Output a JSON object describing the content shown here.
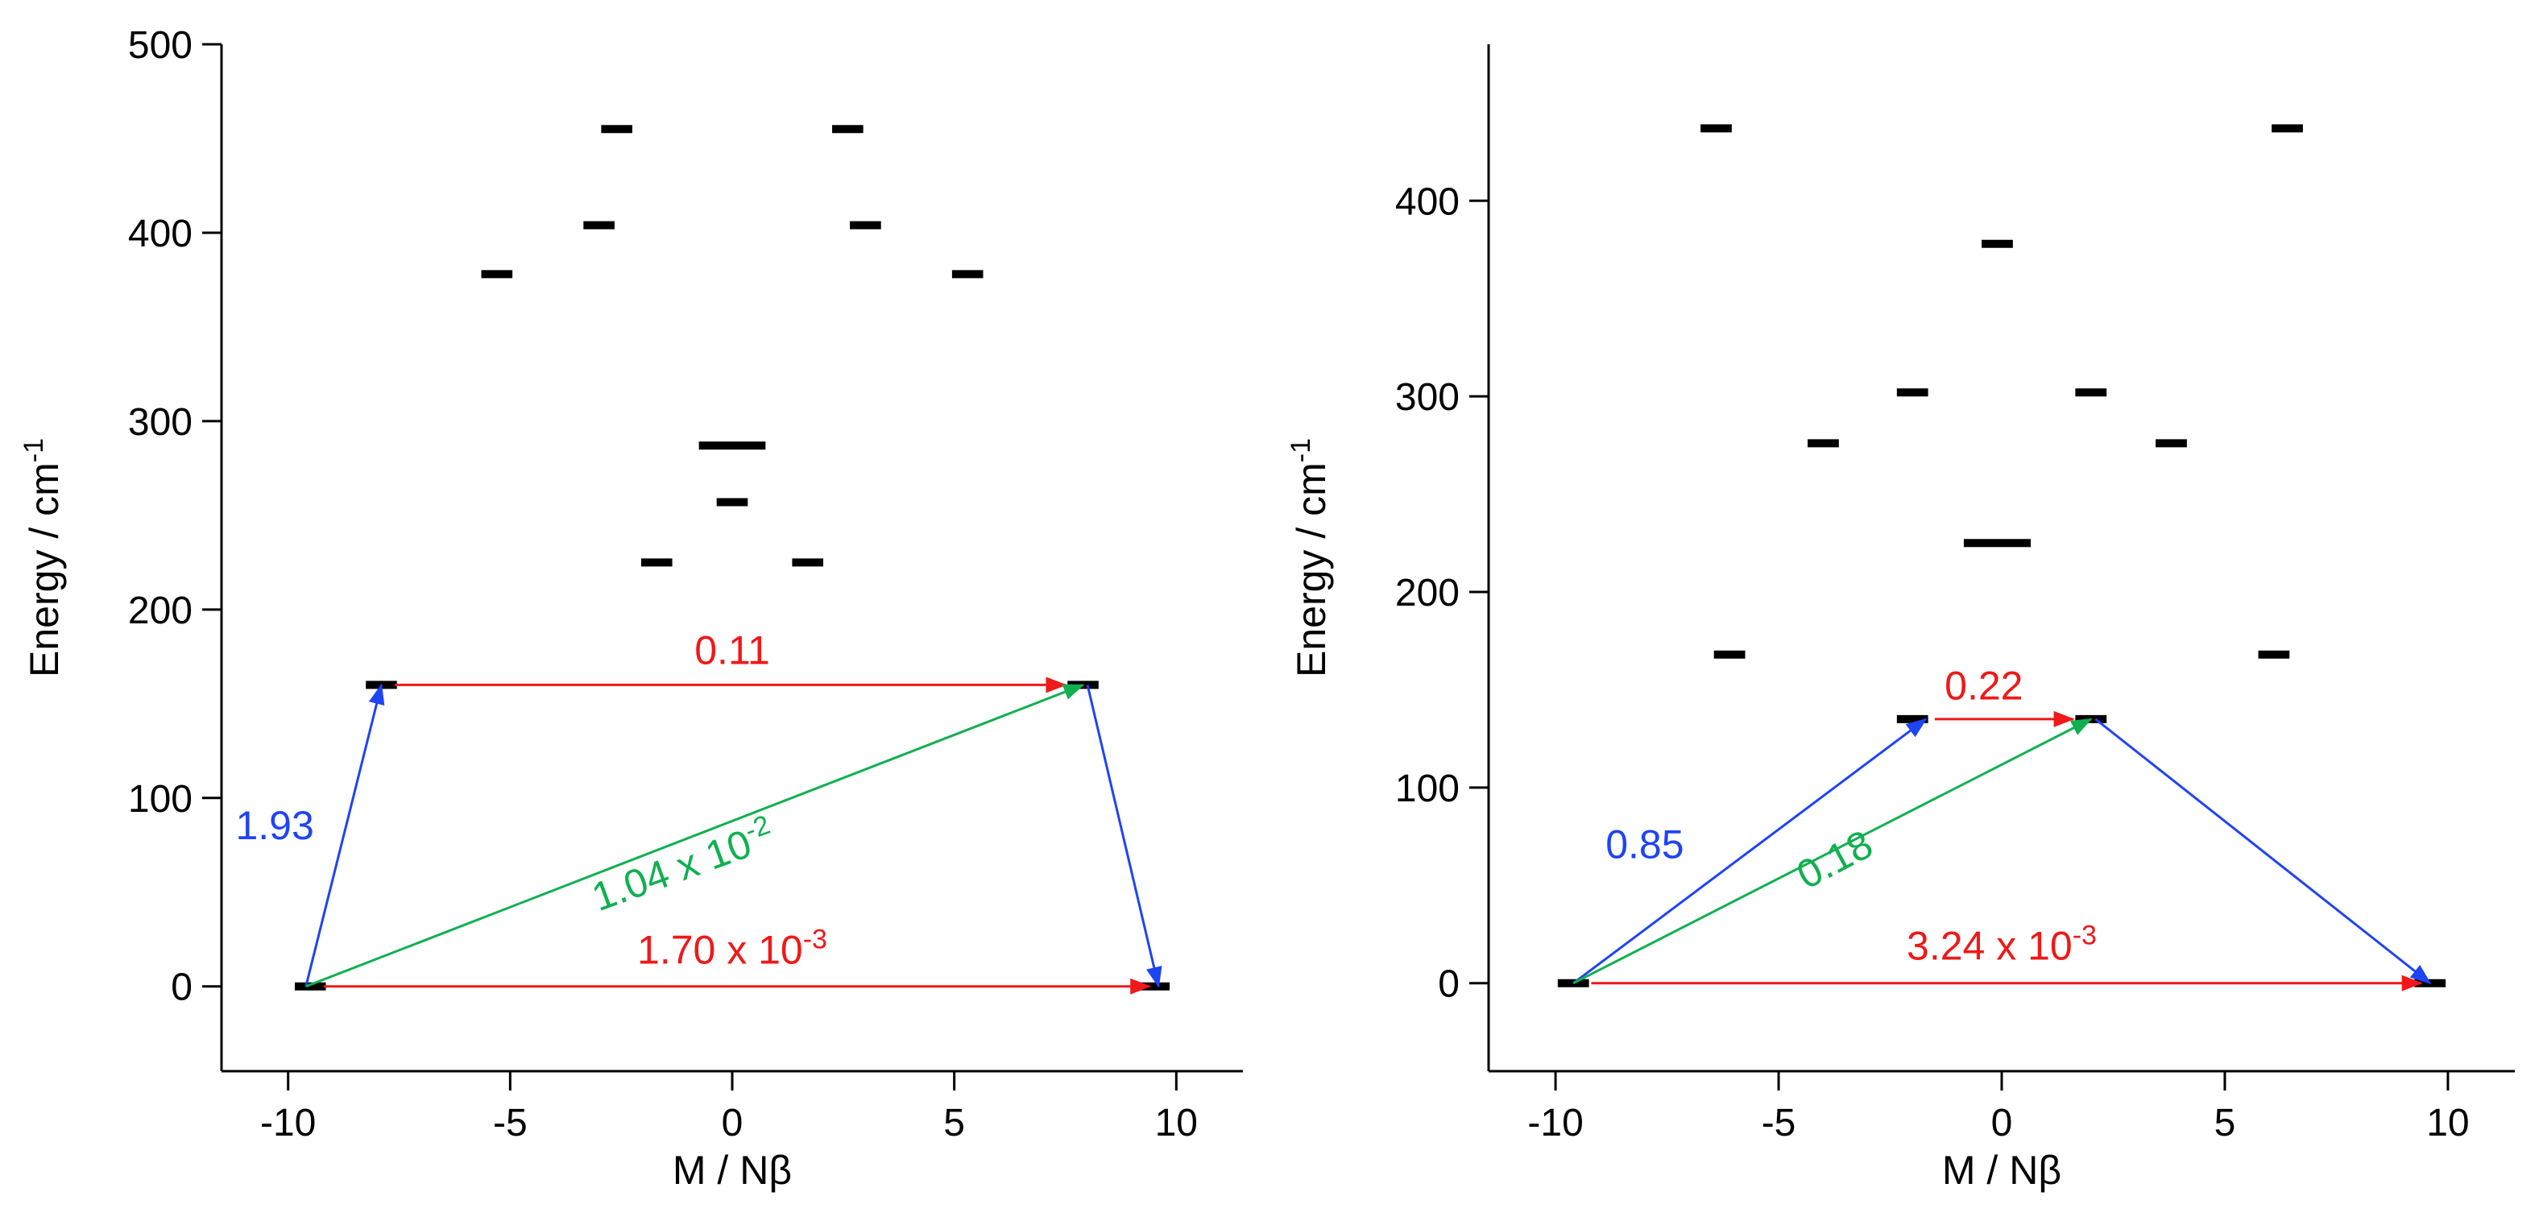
{
  "chart_data": [
    {
      "type": "scatter",
      "title": "",
      "xlabel": "M / Nβ",
      "ylabel": "Energy / cm",
      "ylabel_superscript": "-1",
      "xlim": [
        -11.5,
        11.5
      ],
      "ylim": [
        -45,
        500
      ],
      "xticks": [
        -10,
        -5,
        0,
        5,
        10
      ],
      "xtick_labels": [
        "-10",
        "-5",
        "0",
        "5",
        "10"
      ],
      "yticks": [
        0,
        100,
        200,
        300,
        400,
        500
      ],
      "ytick_labels": [
        "0",
        "100",
        "200",
        "300",
        "400",
        "500"
      ],
      "grid": false,
      "levels": [
        {
          "m": -9.5,
          "energy": 0,
          "width": 0.7
        },
        {
          "m": 9.5,
          "energy": 0,
          "width": 0.7
        },
        {
          "m": -7.9,
          "energy": 160,
          "width": 0.7
        },
        {
          "m": 7.9,
          "energy": 160,
          "width": 0.7
        },
        {
          "m": -1.7,
          "energy": 225,
          "width": 0.7
        },
        {
          "m": 1.7,
          "energy": 225,
          "width": 0.7
        },
        {
          "m": 0.0,
          "energy": 257,
          "width": 0.7
        },
        {
          "m": 0.0,
          "energy": 287,
          "width": 1.5
        },
        {
          "m": -5.3,
          "energy": 378,
          "width": 0.7
        },
        {
          "m": 5.3,
          "energy": 378,
          "width": 0.7
        },
        {
          "m": -3.0,
          "energy": 404,
          "width": 0.7
        },
        {
          "m": 3.0,
          "energy": 404,
          "width": 0.7
        },
        {
          "m": -2.6,
          "energy": 455,
          "width": 0.7
        },
        {
          "m": 2.6,
          "energy": 455,
          "width": 0.7
        }
      ],
      "transitions": [
        {
          "from": [
            -9.6,
            0
          ],
          "to": [
            -7.9,
            160
          ],
          "color": "#1f44f5",
          "label": "1.93",
          "label_sup": "",
          "label_at": [
            -10.3,
            78
          ],
          "label_rotate": 0
        },
        {
          "from": [
            -7.6,
            160
          ],
          "to": [
            7.5,
            160
          ],
          "color": "#f01818",
          "label": "0.11",
          "label_sup": "",
          "label_at": [
            0.0,
            171
          ],
          "label_rotate": 0
        },
        {
          "from": [
            -9.6,
            0
          ],
          "to": [
            7.9,
            160
          ],
          "color": "#10b050",
          "label": "1.04 x 10",
          "label_sup": "-2",
          "label_at": [
            -1.0,
            57
          ],
          "label_rotate": -20
        },
        {
          "from": [
            8.0,
            160
          ],
          "to": [
            9.6,
            0
          ],
          "color": "#1f44f5",
          "label": "",
          "label_sup": "",
          "label_at": [
            0,
            0
          ],
          "label_rotate": 0
        },
        {
          "from": [
            -9.2,
            0
          ],
          "to": [
            9.4,
            0
          ],
          "color": "#f01818",
          "label": "1.70 x 10",
          "label_sup": "-3",
          "label_at": [
            0.0,
            12
          ],
          "label_rotate": 0
        }
      ]
    },
    {
      "type": "scatter",
      "title": "",
      "xlabel": "M / Nβ",
      "ylabel": "Energy / cm",
      "ylabel_superscript": "-1",
      "xlim": [
        -11.5,
        11.5
      ],
      "ylim": [
        -45,
        480
      ],
      "xticks": [
        -10,
        -5,
        0,
        5,
        10
      ],
      "xtick_labels": [
        "-10",
        "-5",
        "0",
        "5",
        "10"
      ],
      "yticks": [
        0,
        100,
        200,
        300,
        400
      ],
      "ytick_labels": [
        "0",
        "100",
        "200",
        "300",
        "400"
      ],
      "grid": false,
      "levels": [
        {
          "m": -9.6,
          "energy": 0,
          "width": 0.7
        },
        {
          "m": 9.6,
          "energy": 0,
          "width": 0.7
        },
        {
          "m": -2.0,
          "energy": 135,
          "width": 0.7
        },
        {
          "m": 2.0,
          "energy": 135,
          "width": 0.7
        },
        {
          "m": -6.1,
          "energy": 168,
          "width": 0.7
        },
        {
          "m": 6.1,
          "energy": 168,
          "width": 0.7
        },
        {
          "m": -0.1,
          "energy": 225,
          "width": 1.5
        },
        {
          "m": -4.0,
          "energy": 276,
          "width": 0.7
        },
        {
          "m": 3.8,
          "energy": 276,
          "width": 0.7
        },
        {
          "m": -2.0,
          "energy": 302,
          "width": 0.7
        },
        {
          "m": 2.0,
          "energy": 302,
          "width": 0.7
        },
        {
          "m": -0.1,
          "energy": 378,
          "width": 0.7
        },
        {
          "m": -6.4,
          "energy": 437,
          "width": 0.7
        },
        {
          "m": 6.4,
          "energy": 437,
          "width": 0.7
        }
      ],
      "transitions": [
        {
          "from": [
            -9.6,
            0
          ],
          "to": [
            -1.7,
            135
          ],
          "color": "#1f44f5",
          "label": "0.85",
          "label_sup": "",
          "label_at": [
            -8.0,
            64
          ],
          "label_rotate": 0
        },
        {
          "from": [
            -1.5,
            135
          ],
          "to": [
            1.6,
            135
          ],
          "color": "#f01818",
          "label": "0.22",
          "label_sup": "",
          "label_at": [
            -0.4,
            145
          ],
          "label_rotate": 0
        },
        {
          "from": [
            -9.6,
            0
          ],
          "to": [
            2.0,
            135
          ],
          "color": "#10b050",
          "label": "0.18",
          "label_sup": "",
          "label_at": [
            -3.6,
            57
          ],
          "label_rotate": -28
        },
        {
          "from": [
            2.1,
            135
          ],
          "to": [
            9.6,
            0
          ],
          "color": "#1f44f5",
          "label": "",
          "label_sup": "",
          "label_at": [
            0,
            0
          ],
          "label_rotate": 0
        },
        {
          "from": [
            -9.2,
            0
          ],
          "to": [
            9.4,
            0
          ],
          "color": "#f01818",
          "label": "3.24 x 10",
          "label_sup": "-3",
          "label_at": [
            0.0,
            12
          ],
          "label_rotate": 0
        }
      ]
    }
  ]
}
